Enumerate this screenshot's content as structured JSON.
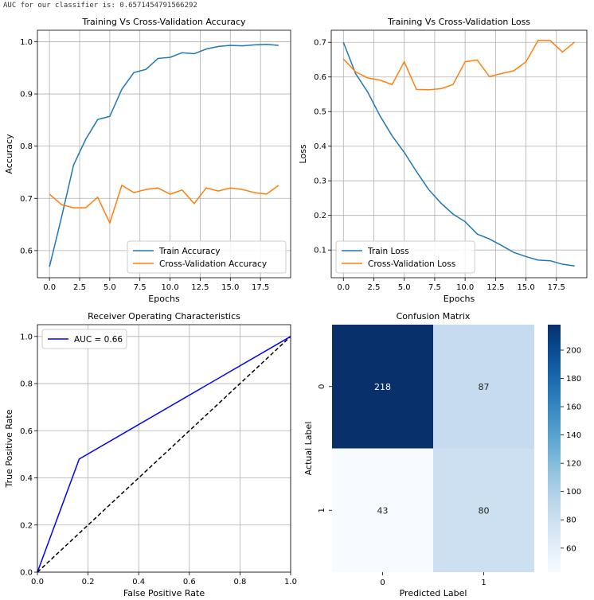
{
  "header": {
    "auc_text": "AUC for our classifier is: 0.6571454791566292"
  },
  "colors": {
    "train": "#1f77b4",
    "cv": "#ff7f0e",
    "roc": "#0000ff",
    "diag": "#000000",
    "grid": "#b0b0b0"
  },
  "chart_data": [
    {
      "type": "line",
      "title": "Training Vs Cross-Validation Accuracy",
      "xlabel": "Epochs",
      "ylabel": "Accuracy",
      "xlim": [
        -1,
        20
      ],
      "ylim": [
        0.548,
        1.022
      ],
      "xticks": [
        0,
        2.5,
        5,
        7.5,
        10,
        12.5,
        15,
        17.5
      ],
      "xtick_labels": [
        "0.0",
        "2.5",
        "5.0",
        "7.5",
        "10.0",
        "12.5",
        "15.0",
        "17.5"
      ],
      "yticks": [
        0.6,
        0.7,
        0.8,
        0.9,
        1.0
      ],
      "ytick_labels": [
        "0.6",
        "0.7",
        "0.8",
        "0.9",
        "1.0"
      ],
      "legend_position": "lower-right",
      "x": [
        0,
        1,
        2,
        3,
        4,
        5,
        6,
        7,
        8,
        9,
        10,
        11,
        12,
        13,
        14,
        15,
        16,
        17,
        18,
        19
      ],
      "series": [
        {
          "name": "Train Accuracy",
          "color": "#1f77b4",
          "values": [
            0.569,
            0.664,
            0.764,
            0.813,
            0.851,
            0.857,
            0.909,
            0.941,
            0.947,
            0.968,
            0.97,
            0.979,
            0.977,
            0.986,
            0.991,
            0.993,
            0.992,
            0.994,
            0.995,
            0.993
          ]
        },
        {
          "name": "Cross-Validation Accuracy",
          "color": "#ff7f0e",
          "values": [
            0.708,
            0.688,
            0.682,
            0.682,
            0.702,
            0.653,
            0.725,
            0.711,
            0.717,
            0.72,
            0.708,
            0.716,
            0.69,
            0.72,
            0.714,
            0.72,
            0.717,
            0.711,
            0.708,
            0.725
          ]
        }
      ]
    },
    {
      "type": "line",
      "title": "Training Vs Cross-Validation Loss",
      "xlabel": "Epochs",
      "ylabel": "Loss",
      "xlim": [
        -1,
        20
      ],
      "ylim": [
        0.02,
        0.735
      ],
      "xticks": [
        0,
        2.5,
        5,
        7.5,
        10,
        12.5,
        15,
        17.5
      ],
      "xtick_labels": [
        "0.0",
        "2.5",
        "5.0",
        "7.5",
        "10.0",
        "12.5",
        "15.0",
        "17.5"
      ],
      "yticks": [
        0.1,
        0.2,
        0.3,
        0.4,
        0.5,
        0.6,
        0.7
      ],
      "ytick_labels": [
        "0.1",
        "0.2",
        "0.3",
        "0.4",
        "0.5",
        "0.6",
        "0.7"
      ],
      "legend_position": "lower-left",
      "x": [
        0,
        1,
        2,
        3,
        4,
        5,
        6,
        7,
        8,
        9,
        10,
        11,
        12,
        13,
        14,
        15,
        16,
        17,
        18,
        19
      ],
      "series": [
        {
          "name": "Train Loss",
          "color": "#1f77b4",
          "values": [
            0.7,
            0.61,
            0.556,
            0.488,
            0.43,
            0.382,
            0.327,
            0.275,
            0.236,
            0.204,
            0.182,
            0.146,
            0.132,
            0.113,
            0.093,
            0.081,
            0.071,
            0.069,
            0.059,
            0.054
          ]
        },
        {
          "name": "Cross-Validation Loss",
          "color": "#ff7f0e",
          "values": [
            0.652,
            0.615,
            0.597,
            0.591,
            0.578,
            0.644,
            0.564,
            0.563,
            0.566,
            0.578,
            0.644,
            0.649,
            0.601,
            0.61,
            0.618,
            0.644,
            0.706,
            0.705,
            0.672,
            0.701
          ]
        }
      ]
    },
    {
      "type": "line",
      "title": "Receiver Operating Characteristics",
      "xlabel": "False Positive Rate",
      "ylabel": "True Positive Rate",
      "xlim": [
        0,
        1
      ],
      "ylim": [
        0,
        1.05
      ],
      "xticks": [
        0,
        0.2,
        0.4,
        0.6,
        0.8,
        1.0
      ],
      "xtick_labels": [
        "0.0",
        "0.2",
        "0.4",
        "0.6",
        "0.8",
        "1.0"
      ],
      "yticks": [
        0,
        0.2,
        0.4,
        0.6,
        0.8,
        1.0
      ],
      "ytick_labels": [
        "0.0",
        "0.2",
        "0.4",
        "0.6",
        "0.8",
        "1.0"
      ],
      "legend_position": "upper-left",
      "series": [
        {
          "name": "AUC = 0.66",
          "color": "#0000ff",
          "x": [
            0,
            0.165,
            1.0
          ],
          "values": [
            0,
            0.48,
            1.0
          ]
        },
        {
          "name": "",
          "color": "#000000",
          "dashed": true,
          "x": [
            0,
            1
          ],
          "values": [
            0,
            1
          ]
        }
      ]
    },
    {
      "type": "heatmap",
      "title": "Confusion Matrix",
      "xlabel": "Predicted Label",
      "ylabel": "Actual Label",
      "x_categories": [
        "0",
        "1"
      ],
      "y_categories": [
        "0",
        "1"
      ],
      "values": [
        [
          218,
          87
        ],
        [
          43,
          80
        ]
      ],
      "colorbar_range": [
        43,
        218
      ],
      "colorbar_ticks": [
        60,
        80,
        100,
        120,
        140,
        160,
        180,
        200
      ],
      "colorbar_tick_labels": [
        "60",
        "80",
        "100",
        "120",
        "140",
        "160",
        "180",
        "200"
      ]
    }
  ]
}
